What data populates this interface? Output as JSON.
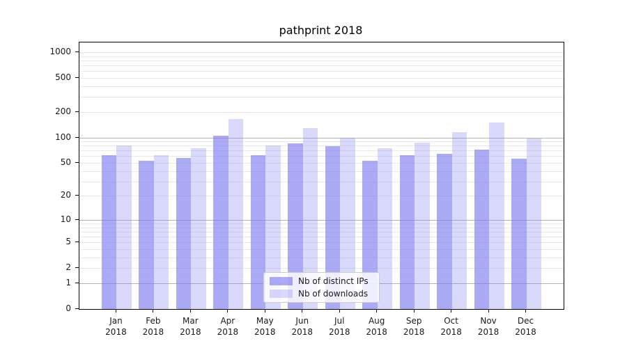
{
  "title": "pathprint 2018",
  "chart_data": {
    "type": "bar",
    "title": "pathprint 2018",
    "xlabel": "",
    "ylabel": "",
    "yscale": "symlog",
    "ylim": [
      0,
      1300
    ],
    "y_ticks": [
      0,
      1,
      2,
      5,
      10,
      20,
      50,
      100,
      200,
      500,
      1000
    ],
    "major_gridlines": [
      1,
      10,
      100
    ],
    "grid": true,
    "legend_position": "lower center",
    "categories": [
      "Jan 2018",
      "Feb 2018",
      "Mar 2018",
      "Apr 2018",
      "May 2018",
      "Jun 2018",
      "Jul 2018",
      "Aug 2018",
      "Sep 2018",
      "Oct 2018",
      "Nov 2018",
      "Dec 2018"
    ],
    "series": [
      {
        "name": "Nb of distinct IPs",
        "color": "#7c7cf0",
        "alpha": 0.65,
        "values": [
          62,
          53,
          57,
          105,
          62,
          85,
          79,
          53,
          62,
          64,
          72,
          56
        ]
      },
      {
        "name": "Nb of downloads",
        "color": "#7c7cf0",
        "alpha": 0.29,
        "values": [
          80,
          62,
          75,
          165,
          80,
          130,
          100,
          75,
          86,
          115,
          150,
          98
        ]
      }
    ]
  },
  "colors": {
    "bar_ips_apparent": "#aaaaf5",
    "bar_downloads_apparent": "#d9d9fb",
    "major_gridline": "#b3b3b3",
    "minor_gridline": "#e9e9e9",
    "spine": "#000000",
    "legend_border": "#cccccc"
  }
}
